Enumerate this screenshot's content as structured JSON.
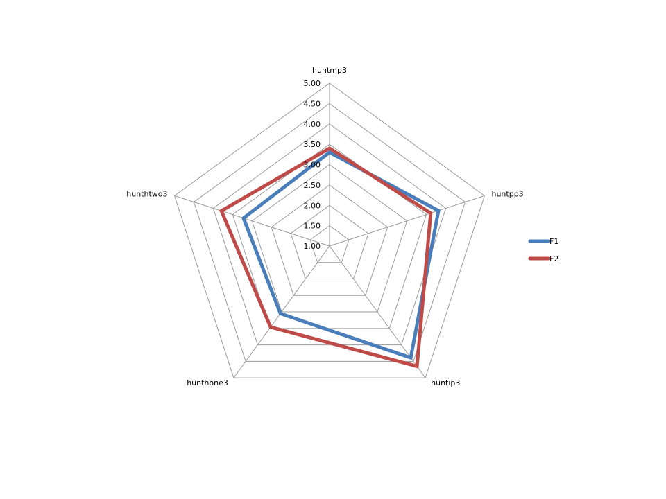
{
  "chart_data": {
    "type": "radar",
    "categories": [
      "huntmp3",
      "huntpp3",
      "huntip3",
      "hunthone3",
      "hunthtwo3"
    ],
    "series": [
      {
        "name": "F1",
        "color": "#4a7ebb",
        "values": [
          3.3,
          3.81,
          4.39,
          3.05,
          3.22
        ]
      },
      {
        "name": "F2",
        "color": "#be4b48",
        "values": [
          3.4,
          3.61,
          4.65,
          3.46,
          3.79
        ]
      }
    ],
    "rlim": [
      1.0,
      5.0
    ],
    "ticks": [
      "1.00",
      "1.50",
      "2.00",
      "2.50",
      "3.00",
      "3.50",
      "4.00",
      "4.50",
      "5.00"
    ],
    "grid": true,
    "grid_color": "#9a9a9a",
    "legend_position": "right"
  }
}
